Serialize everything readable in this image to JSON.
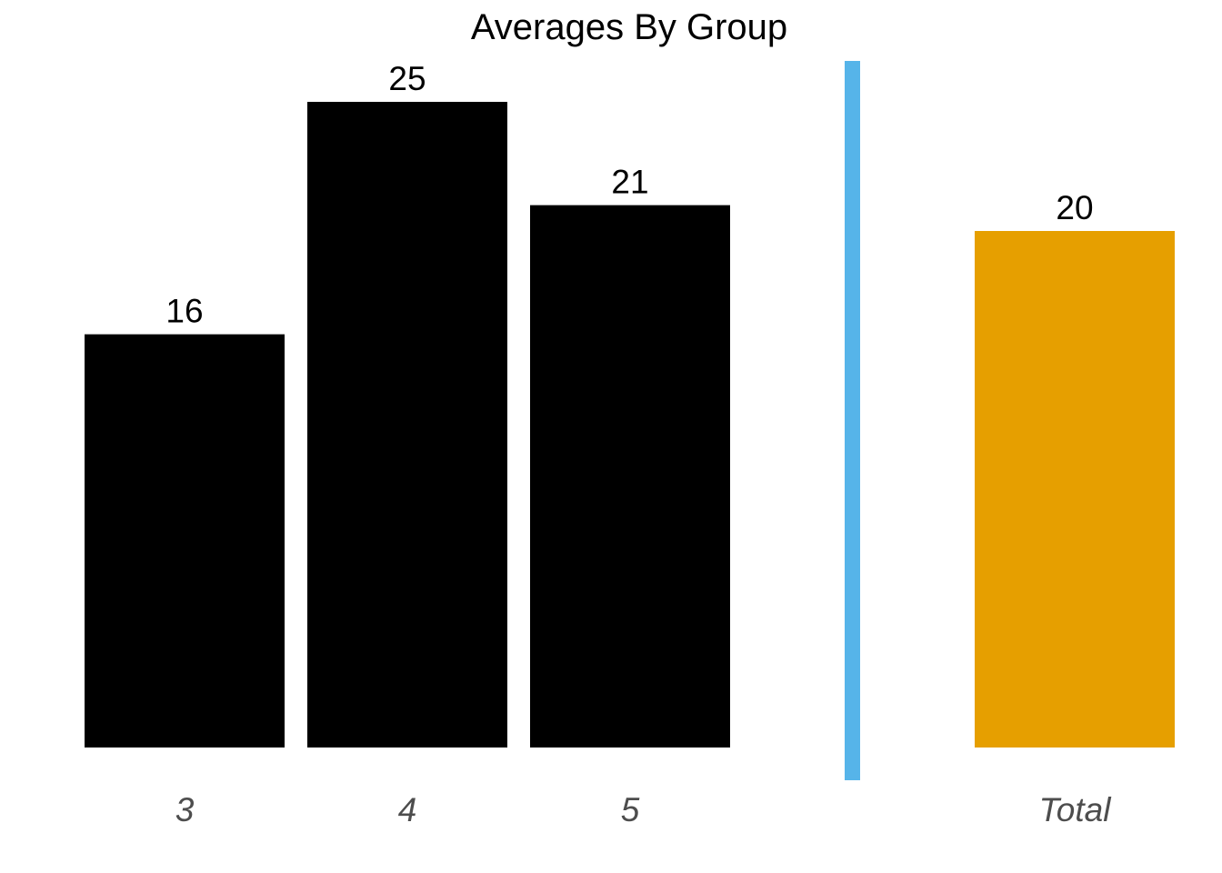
{
  "chart_data": {
    "type": "bar",
    "title": "Averages By Group",
    "xlabel": "",
    "ylabel": "",
    "categories": [
      "3",
      "4",
      "5",
      "Total"
    ],
    "values": [
      16,
      25,
      21,
      20
    ],
    "data_labels": [
      "16",
      "25",
      "21",
      "20"
    ],
    "ylim": [
      0,
      27.5
    ],
    "grid": false,
    "legend": "none",
    "separator_between": [
      "5",
      "Total"
    ],
    "colors": {
      "group_bar": "#000000",
      "total_bar": "#E69F00",
      "separator": "#56B4E9",
      "tick_label": "#4D4D4D",
      "data_label": "#000000"
    }
  }
}
